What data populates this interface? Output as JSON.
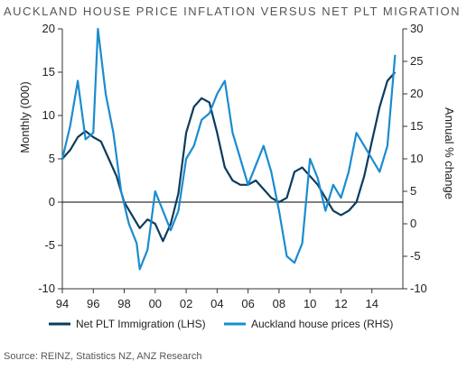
{
  "chart_data": {
    "type": "line",
    "title": "AUCKLAND HOUSE PRICE INFLATION VERSUS NET PLT MIGRATION",
    "ylabel_left": "Monthly (000)",
    "ylabel_right": "Annual % change",
    "source": "Source: REINZ, Statistics NZ, ANZ Research",
    "x_range": [
      1994,
      2016
    ],
    "x_ticks": [
      1994,
      1996,
      1998,
      2000,
      2002,
      2004,
      2006,
      2008,
      2010,
      2012,
      2014
    ],
    "x_tick_labels": [
      "94",
      "96",
      "98",
      "00",
      "02",
      "04",
      "06",
      "08",
      "10",
      "12",
      "14"
    ],
    "ylim_left": [
      -10,
      20
    ],
    "ylim_right": [
      -10,
      30
    ],
    "y_ticks_left": [
      "20",
      "15",
      "10",
      "5",
      "0",
      "-5",
      "-10"
    ],
    "y_ticks_right": [
      "30",
      "25",
      "20",
      "15",
      "10",
      "5",
      "0",
      "-5",
      "-10"
    ],
    "zero_line": true,
    "grid": false,
    "legend_position": "bottom",
    "series": [
      {
        "name": "Net PLT Immigration (LHS)",
        "axis": "left",
        "color": "#0b3b5e",
        "points": [
          [
            1994.0,
            5.0
          ],
          [
            1994.5,
            6.0
          ],
          [
            1995.0,
            7.5
          ],
          [
            1995.5,
            8.2
          ],
          [
            1996.0,
            7.5
          ],
          [
            1996.5,
            7.0
          ],
          [
            1997.0,
            5.0
          ],
          [
            1997.5,
            3.0
          ],
          [
            1998.0,
            0.0
          ],
          [
            1998.5,
            -1.5
          ],
          [
            1999.0,
            -3.0
          ],
          [
            1999.5,
            -2.0
          ],
          [
            2000.0,
            -2.5
          ],
          [
            2000.5,
            -4.5
          ],
          [
            2001.0,
            -2.5
          ],
          [
            2001.5,
            1.0
          ],
          [
            2002.0,
            8.0
          ],
          [
            2002.5,
            11.0
          ],
          [
            2003.0,
            12.0
          ],
          [
            2003.5,
            11.5
          ],
          [
            2004.0,
            8.0
          ],
          [
            2004.5,
            4.0
          ],
          [
            2005.0,
            2.5
          ],
          [
            2005.5,
            2.0
          ],
          [
            2006.0,
            2.0
          ],
          [
            2006.5,
            2.5
          ],
          [
            2007.0,
            1.5
          ],
          [
            2007.5,
            0.5
          ],
          [
            2008.0,
            0.0
          ],
          [
            2008.5,
            0.5
          ],
          [
            2009.0,
            3.5
          ],
          [
            2009.5,
            4.0
          ],
          [
            2010.0,
            3.0
          ],
          [
            2010.5,
            2.0
          ],
          [
            2011.0,
            0.5
          ],
          [
            2011.5,
            -1.0
          ],
          [
            2012.0,
            -1.5
          ],
          [
            2012.5,
            -1.0
          ],
          [
            2013.0,
            0.0
          ],
          [
            2013.5,
            3.0
          ],
          [
            2014.0,
            7.0
          ],
          [
            2014.5,
            11.0
          ],
          [
            2015.0,
            14.0
          ],
          [
            2015.5,
            15.0
          ]
        ]
      },
      {
        "name": "Auckland house prices (RHS)",
        "axis": "right",
        "color": "#1a8ccf",
        "points": [
          [
            1994.0,
            10.0
          ],
          [
            1994.5,
            15.0
          ],
          [
            1995.0,
            22.0
          ],
          [
            1995.5,
            13.0
          ],
          [
            1996.0,
            14.0
          ],
          [
            1996.3,
            30.0
          ],
          [
            1996.8,
            20.0
          ],
          [
            1997.3,
            14.0
          ],
          [
            1997.8,
            5.0
          ],
          [
            1998.3,
            0.0
          ],
          [
            1998.8,
            -3.0
          ],
          [
            1999.0,
            -7.0
          ],
          [
            1999.5,
            -4.0
          ],
          [
            2000.0,
            5.0
          ],
          [
            2000.5,
            2.0
          ],
          [
            2001.0,
            -1.0
          ],
          [
            2001.5,
            2.0
          ],
          [
            2002.0,
            10.0
          ],
          [
            2002.5,
            12.0
          ],
          [
            2003.0,
            16.0
          ],
          [
            2003.5,
            17.0
          ],
          [
            2004.0,
            20.0
          ],
          [
            2004.5,
            22.0
          ],
          [
            2005.0,
            14.0
          ],
          [
            2005.5,
            10.0
          ],
          [
            2006.0,
            6.0
          ],
          [
            2006.5,
            9.0
          ],
          [
            2007.0,
            12.0
          ],
          [
            2007.5,
            8.0
          ],
          [
            2008.0,
            2.0
          ],
          [
            2008.5,
            -5.0
          ],
          [
            2009.0,
            -6.0
          ],
          [
            2009.5,
            -3.0
          ],
          [
            2010.0,
            10.0
          ],
          [
            2010.5,
            7.0
          ],
          [
            2011.0,
            2.0
          ],
          [
            2011.5,
            6.0
          ],
          [
            2012.0,
            4.0
          ],
          [
            2012.5,
            8.0
          ],
          [
            2013.0,
            14.0
          ],
          [
            2013.5,
            12.0
          ],
          [
            2014.0,
            10.0
          ],
          [
            2014.5,
            8.0
          ],
          [
            2015.0,
            12.0
          ],
          [
            2015.5,
            26.0
          ]
        ]
      }
    ]
  }
}
